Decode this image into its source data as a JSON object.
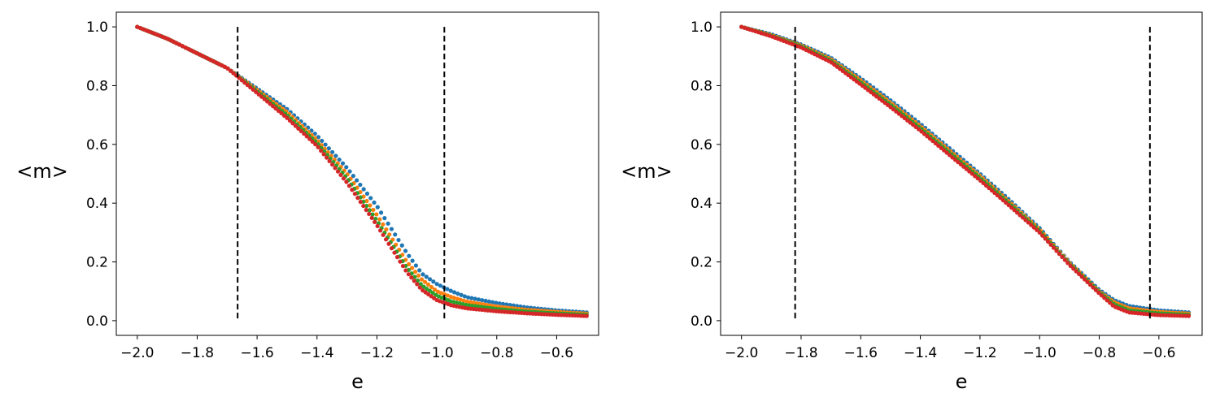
{
  "colors": {
    "series": [
      "#1f77b4",
      "#ff7f0e",
      "#2ca02c",
      "#d62728"
    ],
    "vline": "#000000",
    "frame": "#000000"
  },
  "chart_data": [
    {
      "type": "scatter",
      "xlabel": "e",
      "ylabel": "<m>",
      "xlim": [
        -2.07,
        -0.46
      ],
      "ylim": [
        -0.05,
        1.05
      ],
      "xticks": [
        -2.0,
        -1.8,
        -1.6,
        -1.4,
        -1.2,
        -1.0,
        -0.8,
        -0.6
      ],
      "xtick_labels": [
        "−2.0",
        "−1.8",
        "−1.6",
        "−1.4",
        "−1.2",
        "−1.0",
        "−0.8",
        "−0.6"
      ],
      "yticks": [
        0.0,
        0.2,
        0.4,
        0.6,
        0.8,
        1.0
      ],
      "ytick_labels": [
        "0.0",
        "0.2",
        "0.4",
        "0.6",
        "0.8",
        "1.0"
      ],
      "vlines": [
        -1.665,
        -0.975
      ],
      "x_range": [
        -2.0,
        -0.5
      ],
      "series": [
        {
          "color_index": 0,
          "point_count": 130,
          "points": [
            [
              -2.0,
              1.0
            ],
            [
              -1.9,
              0.96
            ],
            [
              -1.8,
              0.91
            ],
            [
              -1.7,
              0.86
            ],
            [
              -1.6,
              0.79
            ],
            [
              -1.5,
              0.72
            ],
            [
              -1.4,
              0.63
            ],
            [
              -1.3,
              0.52
            ],
            [
              -1.2,
              0.39
            ],
            [
              -1.15,
              0.31
            ],
            [
              -1.1,
              0.23
            ],
            [
              -1.05,
              0.16
            ],
            [
              -1.0,
              0.125
            ],
            [
              -0.95,
              0.1
            ],
            [
              -0.9,
              0.08
            ],
            [
              -0.8,
              0.06
            ],
            [
              -0.7,
              0.045
            ],
            [
              -0.6,
              0.035
            ],
            [
              -0.5,
              0.028
            ]
          ]
        },
        {
          "color_index": 1,
          "point_count": 140,
          "points": [
            [
              -2.0,
              1.0
            ],
            [
              -1.9,
              0.96
            ],
            [
              -1.8,
              0.91
            ],
            [
              -1.7,
              0.86
            ],
            [
              -1.6,
              0.785
            ],
            [
              -1.5,
              0.71
            ],
            [
              -1.4,
              0.615
            ],
            [
              -1.3,
              0.5
            ],
            [
              -1.2,
              0.36
            ],
            [
              -1.15,
              0.28
            ],
            [
              -1.1,
              0.2
            ],
            [
              -1.05,
              0.14
            ],
            [
              -1.0,
              0.1
            ],
            [
              -0.95,
              0.08
            ],
            [
              -0.9,
              0.065
            ],
            [
              -0.8,
              0.048
            ],
            [
              -0.7,
              0.037
            ],
            [
              -0.6,
              0.03
            ],
            [
              -0.5,
              0.024
            ]
          ]
        },
        {
          "color_index": 2,
          "point_count": 150,
          "points": [
            [
              -2.0,
              1.0
            ],
            [
              -1.9,
              0.96
            ],
            [
              -1.8,
              0.91
            ],
            [
              -1.7,
              0.86
            ],
            [
              -1.6,
              0.78
            ],
            [
              -1.5,
              0.7
            ],
            [
              -1.4,
              0.605
            ],
            [
              -1.3,
              0.485
            ],
            [
              -1.2,
              0.34
            ],
            [
              -1.15,
              0.26
            ],
            [
              -1.1,
              0.18
            ],
            [
              -1.05,
              0.12
            ],
            [
              -1.0,
              0.085
            ],
            [
              -0.95,
              0.065
            ],
            [
              -0.9,
              0.053
            ],
            [
              -0.8,
              0.04
            ],
            [
              -0.7,
              0.031
            ],
            [
              -0.6,
              0.025
            ],
            [
              -0.5,
              0.02
            ]
          ]
        },
        {
          "color_index": 3,
          "point_count": 160,
          "points": [
            [
              -2.0,
              1.0
            ],
            [
              -1.9,
              0.96
            ],
            [
              -1.8,
              0.91
            ],
            [
              -1.7,
              0.86
            ],
            [
              -1.6,
              0.775
            ],
            [
              -1.5,
              0.69
            ],
            [
              -1.4,
              0.595
            ],
            [
              -1.3,
              0.47
            ],
            [
              -1.2,
              0.325
            ],
            [
              -1.15,
              0.245
            ],
            [
              -1.1,
              0.165
            ],
            [
              -1.05,
              0.105
            ],
            [
              -1.0,
              0.07
            ],
            [
              -0.95,
              0.052
            ],
            [
              -0.9,
              0.042
            ],
            [
              -0.8,
              0.032
            ],
            [
              -0.7,
              0.025
            ],
            [
              -0.6,
              0.02
            ],
            [
              -0.5,
              0.016
            ]
          ]
        }
      ]
    },
    {
      "type": "scatter",
      "xlabel": "e",
      "ylabel": "<m>",
      "xlim": [
        -2.07,
        -0.455
      ],
      "ylim": [
        -0.05,
        1.05
      ],
      "xticks": [
        -2.0,
        -1.8,
        -1.6,
        -1.4,
        -1.2,
        -1.0,
        -0.8,
        -0.6
      ],
      "xtick_labels": [
        "−2.0",
        "−1.8",
        "−1.6",
        "−1.4",
        "−1.2",
        "−1.0",
        "−0.8",
        "−0.6"
      ],
      "yticks": [
        0.0,
        0.2,
        0.4,
        0.6,
        0.8,
        1.0
      ],
      "ytick_labels": [
        "0.0",
        "0.2",
        "0.4",
        "0.6",
        "0.8",
        "1.0"
      ],
      "vlines": [
        -1.82,
        -0.63
      ],
      "x_range": [
        -2.0,
        -0.5
      ],
      "series": [
        {
          "color_index": 0,
          "point_count": 130,
          "points": [
            [
              -2.0,
              1.0
            ],
            [
              -1.9,
              0.975
            ],
            [
              -1.8,
              0.94
            ],
            [
              -1.7,
              0.895
            ],
            [
              -1.6,
              0.825
            ],
            [
              -1.5,
              0.75
            ],
            [
              -1.4,
              0.67
            ],
            [
              -1.3,
              0.585
            ],
            [
              -1.2,
              0.5
            ],
            [
              -1.1,
              0.41
            ],
            [
              -1.0,
              0.315
            ],
            [
              -0.9,
              0.2
            ],
            [
              -0.8,
              0.105
            ],
            [
              -0.75,
              0.07
            ],
            [
              -0.7,
              0.05
            ],
            [
              -0.6,
              0.035
            ],
            [
              -0.5,
              0.028
            ]
          ]
        },
        {
          "color_index": 1,
          "point_count": 140,
          "points": [
            [
              -2.0,
              1.0
            ],
            [
              -1.9,
              0.972
            ],
            [
              -1.8,
              0.937
            ],
            [
              -1.7,
              0.89
            ],
            [
              -1.6,
              0.818
            ],
            [
              -1.5,
              0.742
            ],
            [
              -1.4,
              0.662
            ],
            [
              -1.3,
              0.577
            ],
            [
              -1.2,
              0.493
            ],
            [
              -1.1,
              0.403
            ],
            [
              -1.0,
              0.31
            ],
            [
              -0.9,
              0.197
            ],
            [
              -0.8,
              0.1
            ],
            [
              -0.75,
              0.063
            ],
            [
              -0.7,
              0.042
            ],
            [
              -0.6,
              0.03
            ],
            [
              -0.5,
              0.024
            ]
          ]
        },
        {
          "color_index": 2,
          "point_count": 150,
          "points": [
            [
              -2.0,
              1.0
            ],
            [
              -1.9,
              0.97
            ],
            [
              -1.8,
              0.934
            ],
            [
              -1.7,
              0.885
            ],
            [
              -1.6,
              0.811
            ],
            [
              -1.5,
              0.735
            ],
            [
              -1.4,
              0.655
            ],
            [
              -1.3,
              0.57
            ],
            [
              -1.2,
              0.486
            ],
            [
              -1.1,
              0.397
            ],
            [
              -1.0,
              0.305
            ],
            [
              -0.9,
              0.194
            ],
            [
              -0.8,
              0.097
            ],
            [
              -0.75,
              0.056
            ],
            [
              -0.7,
              0.035
            ],
            [
              -0.6,
              0.025
            ],
            [
              -0.5,
              0.02
            ]
          ]
        },
        {
          "color_index": 3,
          "point_count": 160,
          "points": [
            [
              -2.0,
              1.0
            ],
            [
              -1.9,
              0.968
            ],
            [
              -1.8,
              0.93
            ],
            [
              -1.7,
              0.88
            ],
            [
              -1.6,
              0.804
            ],
            [
              -1.5,
              0.727
            ],
            [
              -1.4,
              0.647
            ],
            [
              -1.3,
              0.562
            ],
            [
              -1.2,
              0.478
            ],
            [
              -1.1,
              0.39
            ],
            [
              -1.0,
              0.3
            ],
            [
              -0.9,
              0.19
            ],
            [
              -0.8,
              0.093
            ],
            [
              -0.75,
              0.048
            ],
            [
              -0.7,
              0.028
            ],
            [
              -0.6,
              0.019
            ],
            [
              -0.5,
              0.016
            ]
          ]
        }
      ]
    }
  ]
}
